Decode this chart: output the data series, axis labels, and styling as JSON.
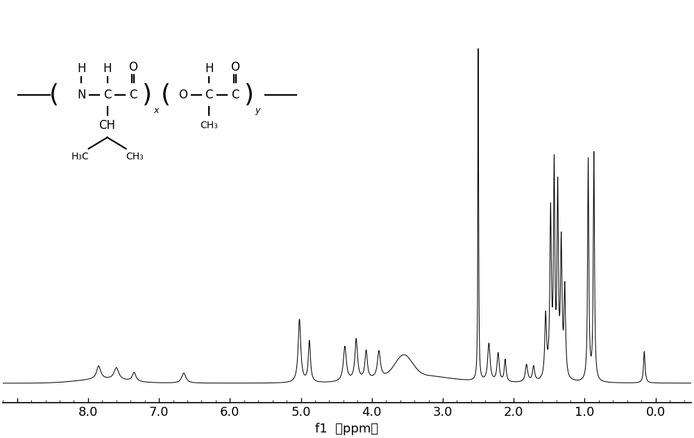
{
  "title": "",
  "xlabel": "f1（ppm）",
  "ylabel": "",
  "xlim": [
    9.2,
    -0.5
  ],
  "ylim": [
    -0.04,
    1.1
  ],
  "xticks": [
    9.0,
    8.0,
    7.0,
    6.0,
    5.0,
    4.0,
    3.0,
    2.0,
    1.0,
    0.0
  ],
  "xtick_labels": [
    "",
    "8.0",
    "7.0",
    "6.0",
    "5.0",
    "4.0",
    "3.0",
    "2.0",
    "1.0",
    "0.0"
  ],
  "background_color": "#ffffff",
  "line_color": "#000000",
  "figsize": [
    10.0,
    6.32
  ],
  "dpi": 100
}
